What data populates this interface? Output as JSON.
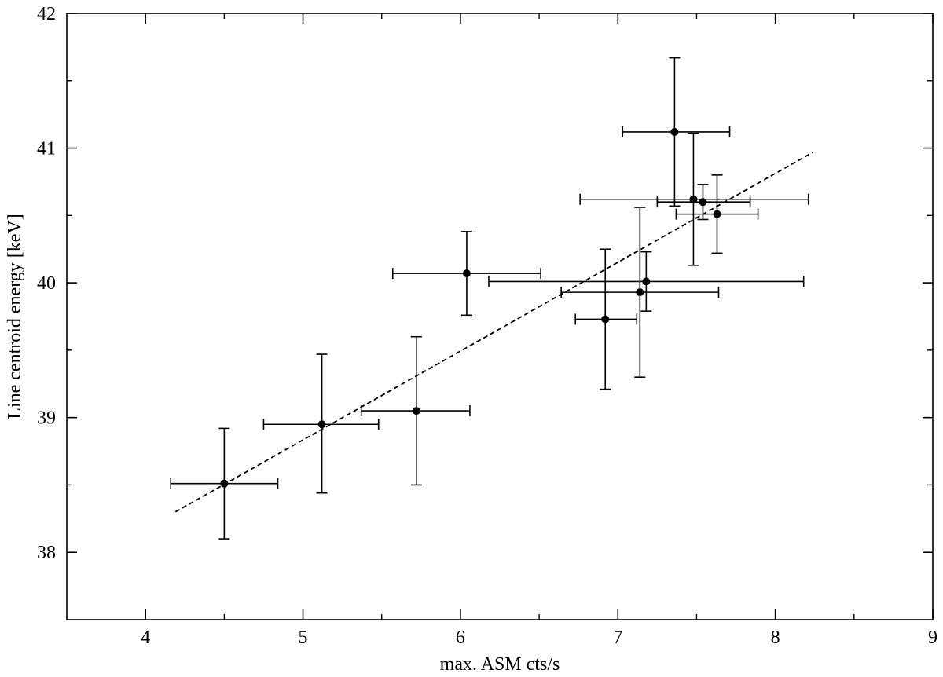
{
  "chart_data": {
    "type": "scatter",
    "title": "",
    "xlabel": "max. ASM cts/s",
    "ylabel": "Line centroid energy  [keV]",
    "xlim": [
      3.5,
      9
    ],
    "ylim": [
      37.5,
      42
    ],
    "xticks": [
      4,
      5,
      6,
      7,
      8,
      9
    ],
    "yticks": [
      38,
      39,
      40,
      41,
      42
    ],
    "grid": false,
    "legend": "none",
    "series": [
      {
        "style": "points-with-errorbars",
        "color": "#000000",
        "points": [
          {
            "x": 4.5,
            "y": 38.51,
            "xlo": 4.16,
            "xhi": 4.84,
            "ylo": 38.1,
            "yhi": 38.92
          },
          {
            "x": 5.12,
            "y": 38.95,
            "xlo": 4.75,
            "xhi": 5.48,
            "ylo": 38.44,
            "yhi": 39.47
          },
          {
            "x": 5.72,
            "y": 39.05,
            "xlo": 5.37,
            "xhi": 6.06,
            "ylo": 38.5,
            "yhi": 39.6
          },
          {
            "x": 6.04,
            "y": 40.07,
            "xlo": 5.57,
            "xhi": 6.51,
            "ylo": 39.76,
            "yhi": 40.38
          },
          {
            "x": 6.92,
            "y": 39.73,
            "xlo": 6.73,
            "xhi": 7.12,
            "ylo": 39.21,
            "yhi": 40.25
          },
          {
            "x": 7.14,
            "y": 39.93,
            "xlo": 6.64,
            "xhi": 7.64,
            "ylo": 39.3,
            "yhi": 40.56
          },
          {
            "x": 7.18,
            "y": 40.01,
            "xlo": 6.18,
            "xhi": 8.18,
            "ylo": 39.79,
            "yhi": 40.23
          },
          {
            "x": 7.36,
            "y": 41.12,
            "xlo": 7.03,
            "xhi": 7.71,
            "ylo": 40.57,
            "yhi": 41.67
          },
          {
            "x": 7.48,
            "y": 40.62,
            "xlo": 6.76,
            "xhi": 8.21,
            "ylo": 40.13,
            "yhi": 41.11
          },
          {
            "x": 7.54,
            "y": 40.6,
            "xlo": 7.25,
            "xhi": 7.84,
            "ylo": 40.47,
            "yhi": 40.73
          },
          {
            "x": 7.63,
            "y": 40.51,
            "xlo": 7.37,
            "xhi": 7.89,
            "ylo": 40.22,
            "yhi": 40.8
          }
        ]
      },
      {
        "style": "dashed-line",
        "color": "#000000",
        "x": [
          4.19,
          8.24
        ],
        "y": [
          38.3,
          40.97
        ]
      }
    ]
  }
}
